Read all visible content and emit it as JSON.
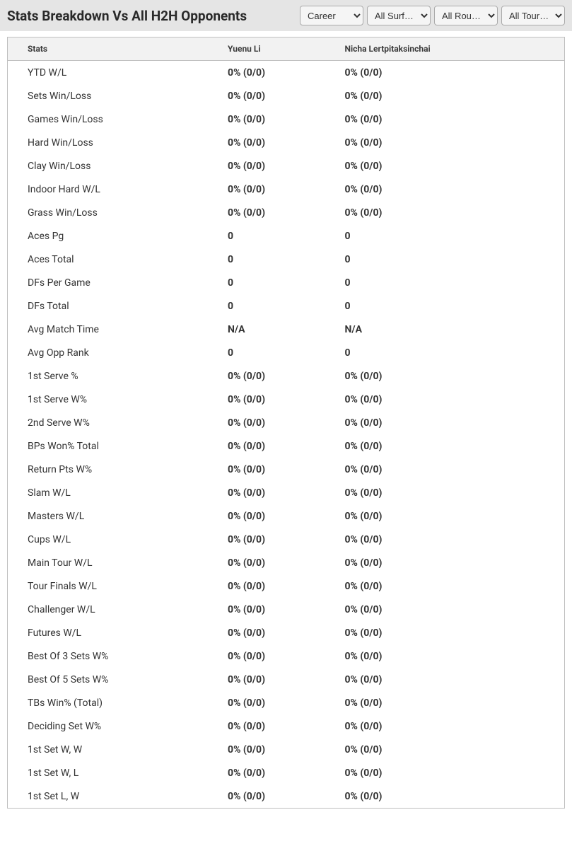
{
  "header": {
    "title": "Stats Breakdown Vs All H2H Opponents"
  },
  "filters": {
    "career": {
      "selected": "Career"
    },
    "surface": {
      "selected": "All Surf…"
    },
    "round": {
      "selected": "All Rou…"
    },
    "tour": {
      "selected": "All Tour…"
    }
  },
  "table": {
    "columns": [
      "Stats",
      "Yuenu Li",
      "Nicha Lertpitaksinchai"
    ],
    "rows": [
      [
        "YTD W/L",
        "0% (0/0)",
        "0% (0/0)"
      ],
      [
        "Sets Win/Loss",
        "0% (0/0)",
        "0% (0/0)"
      ],
      [
        "Games Win/Loss",
        "0% (0/0)",
        "0% (0/0)"
      ],
      [
        "Hard Win/Loss",
        "0% (0/0)",
        "0% (0/0)"
      ],
      [
        "Clay Win/Loss",
        "0% (0/0)",
        "0% (0/0)"
      ],
      [
        "Indoor Hard W/L",
        "0% (0/0)",
        "0% (0/0)"
      ],
      [
        "Grass Win/Loss",
        "0% (0/0)",
        "0% (0/0)"
      ],
      [
        "Aces Pg",
        "0",
        "0"
      ],
      [
        "Aces Total",
        "0",
        "0"
      ],
      [
        "DFs Per Game",
        "0",
        "0"
      ],
      [
        "DFs Total",
        "0",
        "0"
      ],
      [
        "Avg Match Time",
        "N/A",
        "N/A"
      ],
      [
        "Avg Opp Rank",
        "0",
        "0"
      ],
      [
        "1st Serve %",
        "0% (0/0)",
        "0% (0/0)"
      ],
      [
        "1st Serve W%",
        "0% (0/0)",
        "0% (0/0)"
      ],
      [
        "2nd Serve W%",
        "0% (0/0)",
        "0% (0/0)"
      ],
      [
        "BPs Won% Total",
        "0% (0/0)",
        "0% (0/0)"
      ],
      [
        "Return Pts W%",
        "0% (0/0)",
        "0% (0/0)"
      ],
      [
        "Slam W/L",
        "0% (0/0)",
        "0% (0/0)"
      ],
      [
        "Masters W/L",
        "0% (0/0)",
        "0% (0/0)"
      ],
      [
        "Cups W/L",
        "0% (0/0)",
        "0% (0/0)"
      ],
      [
        "Main Tour W/L",
        "0% (0/0)",
        "0% (0/0)"
      ],
      [
        "Tour Finals W/L",
        "0% (0/0)",
        "0% (0/0)"
      ],
      [
        "Challenger W/L",
        "0% (0/0)",
        "0% (0/0)"
      ],
      [
        "Futures W/L",
        "0% (0/0)",
        "0% (0/0)"
      ],
      [
        "Best Of 3 Sets W%",
        "0% (0/0)",
        "0% (0/0)"
      ],
      [
        "Best Of 5 Sets W%",
        "0% (0/0)",
        "0% (0/0)"
      ],
      [
        "TBs Win% (Total)",
        "0% (0/0)",
        "0% (0/0)"
      ],
      [
        "Deciding Set W%",
        "0% (0/0)",
        "0% (0/0)"
      ],
      [
        "1st Set W, W",
        "0% (0/0)",
        "0% (0/0)"
      ],
      [
        "1st Set W, L",
        "0% (0/0)",
        "0% (0/0)"
      ],
      [
        "1st Set L, W",
        "0% (0/0)",
        "0% (0/0)"
      ]
    ]
  },
  "style": {
    "header_bg": "#e5e5e5",
    "table_border": "#bfbfbf",
    "th_bg": "#f2f2f2",
    "text_color": "#333333",
    "title_fontsize": 19,
    "th_fontsize": 12,
    "td_fontsize": 14
  }
}
